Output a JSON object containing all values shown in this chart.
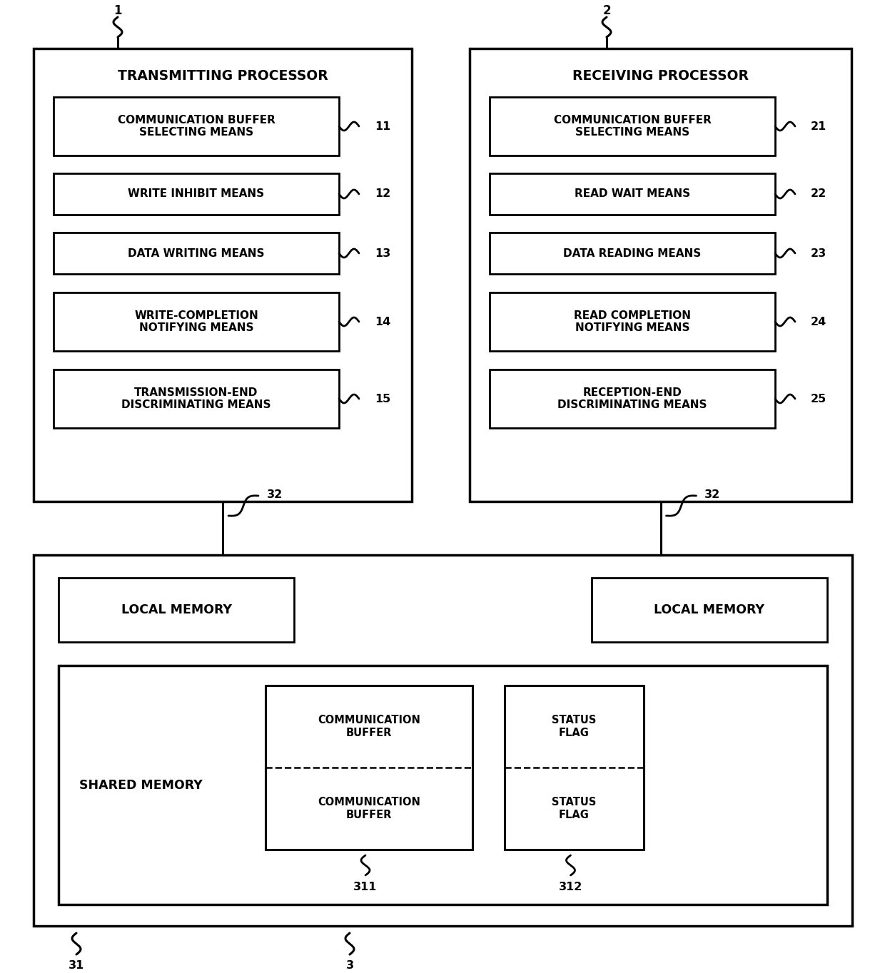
{
  "bg_color": "#ffffff",
  "line_color": "#000000",
  "fig_width": 12.4,
  "fig_height": 13.64,
  "trans_title": "TRANSMITTING PROCESSOR",
  "recv_title": "RECEIVING PROCESSOR",
  "trans_boxes": [
    {
      "text": "COMMUNICATION BUFFER\nSELECTING MEANS",
      "label": "11"
    },
    {
      "text": "WRITE INHIBIT MEANS",
      "label": "12"
    },
    {
      "text": "DATA WRITING MEANS",
      "label": "13"
    },
    {
      "text": "WRITE-COMPLETION\nNOTIFYING MEANS",
      "label": "14"
    },
    {
      "text": "TRANSMISSION-END\nDISCRIMINATING MEANS",
      "label": "15"
    }
  ],
  "recv_boxes": [
    {
      "text": "COMMUNICATION BUFFER\nSELECTING MEANS",
      "label": "21"
    },
    {
      "text": "READ WAIT MEANS",
      "label": "22"
    },
    {
      "text": "DATA READING MEANS",
      "label": "23"
    },
    {
      "text": "READ COMPLETION\nNOTIFYING MEANS",
      "label": "24"
    },
    {
      "text": "RECEPTION-END\nDISCRIMINATING MEANS",
      "label": "25"
    }
  ],
  "shared_memory_label": "SHARED MEMORY",
  "local_memory_label": "LOCAL MEMORY",
  "comm_buffer_text1": "COMMUNICATION\nBUFFER",
  "comm_buffer_text2": "COMMUNICATION\nBUFFER",
  "status_flag_text1": "STATUS\nFLAG",
  "status_flag_text2": "STATUS\nFLAG"
}
